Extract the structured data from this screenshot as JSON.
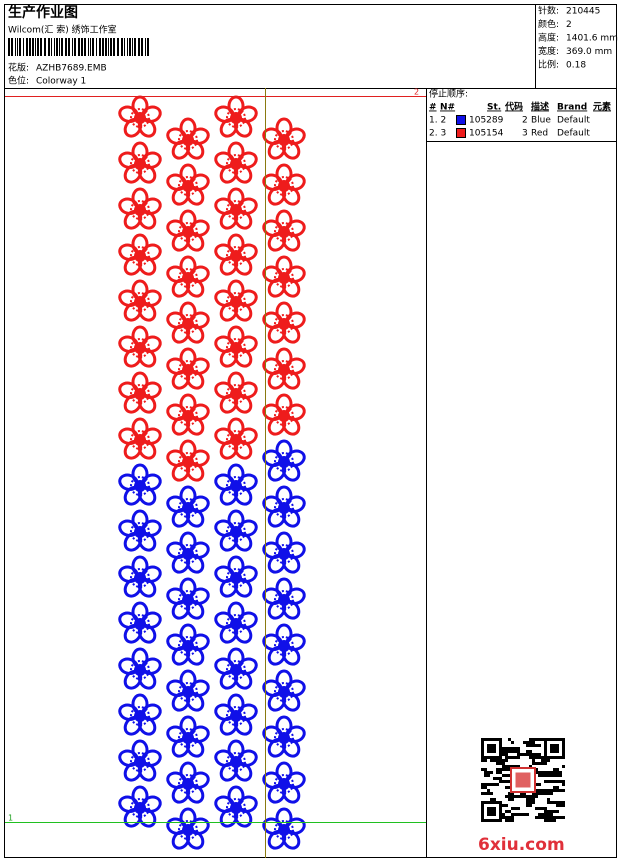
{
  "header": {
    "title": "生产作业图",
    "studio": "Wilcom(汇 索) 绣饰工作室",
    "design_label": "花版:",
    "design": "AZHB7689.EMB",
    "colorway_label": "色位:",
    "colorway": "Colorway 1",
    "stats": [
      {
        "label": "针数:",
        "value": "210445"
      },
      {
        "label": "颜色:",
        "value": "2"
      },
      {
        "label": "高度:",
        "value": "1401.6 mm"
      },
      {
        "label": "宽度:",
        "value": "369.0 mm"
      },
      {
        "label": "比例:",
        "value": "0.18"
      }
    ]
  },
  "stop_sequence": {
    "title": "停止顺序:",
    "columns": [
      "#",
      "N#",
      "St.",
      "代码",
      "描述",
      "Brand",
      "元素"
    ],
    "rows": [
      {
        "index": "1. 2",
        "color": "#1010e8",
        "code": "105289",
        "code_num": "2",
        "description": "Blue",
        "brand": "Default"
      },
      {
        "index": "2. 3",
        "color": "#ee1c1c",
        "code": "105154",
        "code_num": "3",
        "description": "Red",
        "brand": "Default"
      }
    ]
  },
  "design_markers": {
    "top": "2",
    "bottom": "1"
  },
  "watermark": "6xiu.com"
}
